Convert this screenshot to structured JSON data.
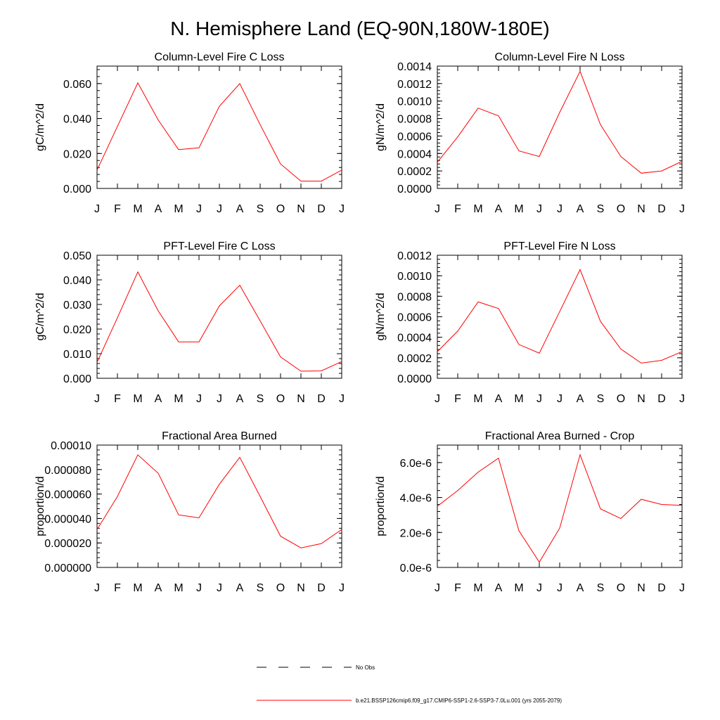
{
  "figure": {
    "title": "N. Hemisphere Land (EQ-90N,180W-180E)"
  },
  "legend": {
    "items": [
      {
        "label": "No Obs",
        "color": "#000000",
        "style": "dashed"
      },
      {
        "label": "b.e21.BSSP126cmip6.f09_g17.CMIP6-SSP1-2.6-SSP3-7.0Lu.001 (yrs 2055-2079)",
        "color": "#ff0000",
        "style": "solid"
      }
    ]
  },
  "chart_data": [
    {
      "type": "line",
      "title": "Column-Level Fire C Loss",
      "ylabel": "gC/m^2/d",
      "categories": [
        "J",
        "F",
        "M",
        "A",
        "M",
        "J",
        "J",
        "A",
        "S",
        "O",
        "N",
        "D",
        "J"
      ],
      "ylim": [
        0,
        0.07
      ],
      "yticks": [
        0,
        0.02,
        0.04,
        0.06
      ],
      "ytick_labels": [
        "0.000",
        "0.020",
        "0.040",
        "0.060"
      ],
      "series": [
        {
          "color": "#ff0000",
          "values": [
            0.0105,
            0.0355,
            0.0604,
            0.0392,
            0.0222,
            0.0232,
            0.047,
            0.06,
            0.0365,
            0.014,
            0.0042,
            0.0042,
            0.0105
          ]
        }
      ]
    },
    {
      "type": "line",
      "title": "Column-Level Fire N Loss",
      "ylabel": "gN/m^2/d",
      "categories": [
        "J",
        "F",
        "M",
        "A",
        "M",
        "J",
        "J",
        "A",
        "S",
        "O",
        "N",
        "D",
        "J"
      ],
      "ylim": [
        0,
        0.0014
      ],
      "yticks": [
        0,
        0.0002,
        0.0004,
        0.0006,
        0.0008,
        0.001,
        0.0012,
        0.0014
      ],
      "ytick_labels": [
        "0.0000",
        "0.0002",
        "0.0004",
        "0.0006",
        "0.0008",
        "0.0010",
        "0.0012",
        "0.0014"
      ],
      "series": [
        {
          "color": "#ff0000",
          "values": [
            0.0003,
            0.00059,
            0.00092,
            0.00083,
            0.00043,
            0.000365,
            0.00087,
            0.00134,
            0.00073,
            0.000365,
            0.000175,
            0.0002,
            0.00031
          ]
        }
      ]
    },
    {
      "type": "line",
      "title": "PFT-Level Fire C Loss",
      "ylabel": "gC/m^2/d",
      "categories": [
        "J",
        "F",
        "M",
        "A",
        "M",
        "J",
        "J",
        "A",
        "S",
        "O",
        "N",
        "D",
        "J"
      ],
      "ylim": [
        0,
        0.05
      ],
      "yticks": [
        0,
        0.01,
        0.02,
        0.03,
        0.04,
        0.05
      ],
      "ytick_labels": [
        "0.000",
        "0.010",
        "0.020",
        "0.030",
        "0.040",
        "0.050"
      ],
      "series": [
        {
          "color": "#ff0000",
          "values": [
            0.0065,
            0.0246,
            0.0432,
            0.0274,
            0.0148,
            0.0148,
            0.0294,
            0.0378,
            0.0233,
            0.0087,
            0.0029,
            0.003,
            0.0068
          ]
        }
      ]
    },
    {
      "type": "line",
      "title": "PFT-Level Fire N Loss",
      "ylabel": "gN/m^2/d",
      "categories": [
        "J",
        "F",
        "M",
        "A",
        "M",
        "J",
        "J",
        "A",
        "S",
        "O",
        "N",
        "D",
        "J"
      ],
      "ylim": [
        0,
        0.0012
      ],
      "yticks": [
        0,
        0.0002,
        0.0004,
        0.0006,
        0.0008,
        0.001,
        0.0012
      ],
      "ytick_labels": [
        "0.0000",
        "0.0002",
        "0.0004",
        "0.0006",
        "0.0008",
        "0.0010",
        "0.0012"
      ],
      "series": [
        {
          "color": "#ff0000",
          "values": [
            0.00026,
            0.00046,
            0.000745,
            0.00068,
            0.00033,
            0.000245,
            0.00065,
            0.00106,
            0.000555,
            0.000285,
            0.000148,
            0.000175,
            0.00026
          ]
        }
      ]
    },
    {
      "type": "line",
      "title": "Fractional Area Burned",
      "ylabel": "proportion/d",
      "categories": [
        "J",
        "F",
        "M",
        "A",
        "M",
        "J",
        "J",
        "A",
        "S",
        "O",
        "N",
        "D",
        "J"
      ],
      "ylim": [
        0,
        0.0001
      ],
      "yticks": [
        0,
        2e-05,
        4e-05,
        6e-05,
        8e-05,
        0.0001
      ],
      "ytick_labels": [
        "0.000000",
        "0.000020",
        "0.000040",
        "0.000060",
        "0.000080",
        "0.00010"
      ],
      "series": [
        {
          "color": "#ff0000",
          "values": [
            3.1e-05,
            5.8e-05,
            9.2e-05,
            7.7e-05,
            4.3e-05,
            4.05e-05,
            6.8e-05,
            9e-05,
            5.8e-05,
            2.55e-05,
            1.6e-05,
            1.95e-05,
            3.1e-05
          ]
        }
      ]
    },
    {
      "type": "line",
      "title": "Fractional Area Burned - Crop",
      "ylabel": "proportion/d",
      "categories": [
        "J",
        "F",
        "M",
        "A",
        "M",
        "J",
        "J",
        "A",
        "S",
        "O",
        "N",
        "D",
        "J"
      ],
      "ylim": [
        0,
        7e-06
      ],
      "yticks": [
        0,
        2e-06,
        4e-06,
        6e-06
      ],
      "ytick_labels": [
        "0.0e-6",
        "2.0e-6",
        "4.0e-6",
        "6.0e-6"
      ],
      "series": [
        {
          "color": "#ff0000",
          "values": [
            3.5e-06,
            4.4e-06,
            5.45e-06,
            6.25e-06,
            2.1e-06,
            3e-07,
            2.25e-06,
            6.45e-06,
            3.35e-06,
            2.8e-06,
            3.9e-06,
            3.6e-06,
            3.55e-06
          ]
        }
      ]
    }
  ]
}
